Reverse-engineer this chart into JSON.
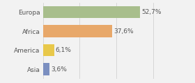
{
  "categories": [
    "Asia",
    "America",
    "Africa",
    "Europa"
  ],
  "values": [
    3.6,
    6.1,
    37.6,
    52.7
  ],
  "bar_colors": [
    "#7b8fc0",
    "#e8c84a",
    "#e8a86a",
    "#a8be8c"
  ],
  "labels": [
    "3,6%",
    "6,1%",
    "37,6%",
    "52,7%"
  ],
  "xlim": [
    0,
    70
  ],
  "background_color": "#f2f2f2",
  "bar_height": 0.65,
  "label_fontsize": 6.5,
  "tick_fontsize": 6.5,
  "figsize": [
    2.8,
    1.2
  ],
  "dpi": 100
}
